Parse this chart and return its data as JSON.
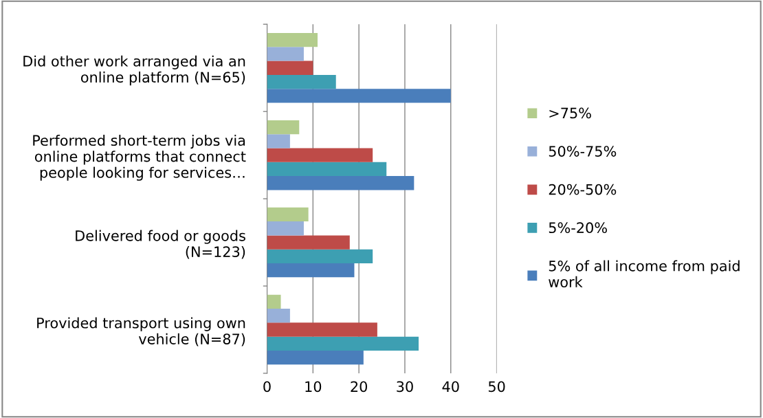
{
  "chart_data": {
    "type": "bar",
    "orientation": "horizontal",
    "categories": [
      "Did other work arranged via an\nonline platform (N=65)",
      "Performed short-term jobs via\nonline platforms that connect\npeople looking for services…",
      "Delivered food or goods\n(N=123)",
      "Provided transport using own\nvehicle (N=87)"
    ],
    "series": [
      {
        "name": "5% of all income from paid\nwork",
        "color": "#4a7ebb",
        "values": [
          40,
          32,
          19,
          21
        ]
      },
      {
        "name": "5%-20%",
        "color": "#3d9fb2",
        "values": [
          15,
          26,
          23,
          33
        ]
      },
      {
        "name": "20%-50%",
        "color": "#be4b48",
        "values": [
          10,
          23,
          18,
          24
        ]
      },
      {
        "name": "50%-75%",
        "color": "#98b0d9",
        "values": [
          8,
          5,
          8,
          5
        ]
      },
      {
        "name": ">75%",
        "color": "#b3cc8c",
        "values": [
          11,
          7,
          9,
          3
        ]
      }
    ],
    "xlim": [
      0,
      50
    ],
    "xticks": [
      0,
      10,
      20,
      30,
      40,
      50
    ],
    "grid": "x",
    "legend": "right"
  }
}
